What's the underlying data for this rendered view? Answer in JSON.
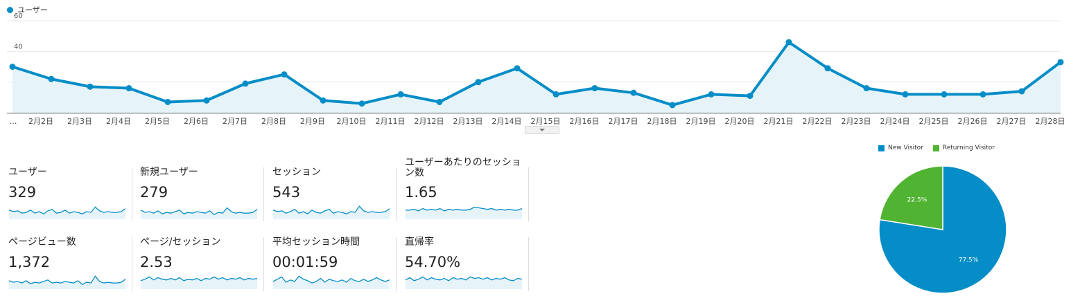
{
  "colors": {
    "primary": "#058dc7",
    "secondary": "#50b432",
    "fill": "#e6f4fa",
    "grid": "#e8e8e8"
  },
  "legend": {
    "label": "ユーザー"
  },
  "chart_data": [
    {
      "type": "area",
      "series": [
        {
          "name": "ユーザー",
          "values": [
            30,
            22,
            17,
            16,
            7,
            8,
            19,
            25,
            8,
            6,
            12,
            7,
            20,
            29,
            12,
            16,
            13,
            5,
            12,
            11,
            46,
            29,
            16,
            12,
            12,
            12,
            14,
            33
          ]
        }
      ],
      "x_labels": [
        "…",
        "2月2日",
        "2月3日",
        "2月4日",
        "2月5日",
        "2月6日",
        "2月7日",
        "2月8日",
        "2月9日",
        "2月10日",
        "2月11日",
        "2月12日",
        "2月13日",
        "2月14日",
        "2月15日",
        "2月16日",
        "2月17日",
        "2月18日",
        "2月19日",
        "2月20日",
        "2月21日",
        "2月22日",
        "2月23日",
        "2月24日",
        "2月25日",
        "2月26日",
        "2月27日",
        "2月28日"
      ],
      "y_ticks": [
        20,
        40,
        60
      ],
      "ylim": [
        0,
        60
      ],
      "grid": true,
      "legend_position": "top-left"
    },
    {
      "type": "pie",
      "slices": [
        {
          "name": "New Visitor",
          "value": 77.5,
          "label": "77.5%"
        },
        {
          "name": "Returning Visitor",
          "value": 22.5,
          "label": "22.5%"
        }
      ],
      "legend_position": "top"
    }
  ],
  "metrics": [
    {
      "label": "ユーザー",
      "value": "329",
      "spark": [
        12,
        10,
        11,
        8,
        9,
        12,
        8,
        10,
        7,
        11,
        13,
        8,
        9,
        12,
        8,
        10,
        9,
        7,
        10,
        9,
        16,
        11,
        9,
        10,
        9,
        9,
        10,
        14
      ]
    },
    {
      "label": "新規ユーザー",
      "value": "279",
      "spark": [
        12,
        9,
        10,
        8,
        11,
        7,
        9,
        8,
        10,
        12,
        7,
        9,
        8,
        10,
        9,
        8,
        11,
        6,
        9,
        8,
        15,
        10,
        8,
        9,
        8,
        8,
        9,
        13
      ]
    },
    {
      "label": "セッション",
      "value": "543",
      "spark": [
        12,
        10,
        11,
        8,
        10,
        13,
        8,
        10,
        7,
        12,
        9,
        8,
        11,
        13,
        8,
        10,
        9,
        7,
        10,
        9,
        17,
        11,
        9,
        10,
        9,
        9,
        10,
        14
      ]
    },
    {
      "label": "ユーザーあたりのセッション数",
      "value": "1.65",
      "spark": [
        12,
        12,
        13,
        11,
        14,
        12,
        13,
        12,
        14,
        11,
        13,
        12,
        13,
        12,
        12,
        13,
        16,
        15,
        14,
        13,
        14,
        12,
        13,
        12,
        13,
        12,
        12,
        14
      ]
    },
    {
      "label": "ページビュー数",
      "value": "1,372",
      "spark": [
        11,
        9,
        10,
        8,
        11,
        7,
        9,
        8,
        10,
        12,
        8,
        9,
        8,
        10,
        9,
        8,
        11,
        6,
        9,
        8,
        17,
        10,
        8,
        9,
        8,
        8,
        9,
        13
      ]
    },
    {
      "label": "ページ/セッション",
      "value": "2.53",
      "spark": [
        11,
        13,
        16,
        12,
        15,
        13,
        12,
        14,
        12,
        15,
        11,
        13,
        12,
        14,
        11,
        14,
        13,
        16,
        13,
        15,
        12,
        14,
        13,
        15,
        12,
        14,
        13,
        14
      ]
    },
    {
      "label": "平均セッション時間",
      "value": "00:01:59",
      "spark": [
        10,
        13,
        16,
        9,
        12,
        10,
        17,
        13,
        11,
        8,
        10,
        14,
        9,
        13,
        11,
        10,
        12,
        9,
        14,
        11,
        10,
        13,
        10,
        12,
        15,
        12,
        10,
        12
      ]
    },
    {
      "label": "直帰率",
      "value": "54.70%",
      "spark": [
        12,
        15,
        11,
        13,
        16,
        12,
        15,
        13,
        12,
        14,
        11,
        15,
        13,
        14,
        12,
        16,
        14,
        15,
        13,
        15,
        12,
        14,
        13,
        15,
        12,
        11,
        14,
        13
      ]
    }
  ]
}
